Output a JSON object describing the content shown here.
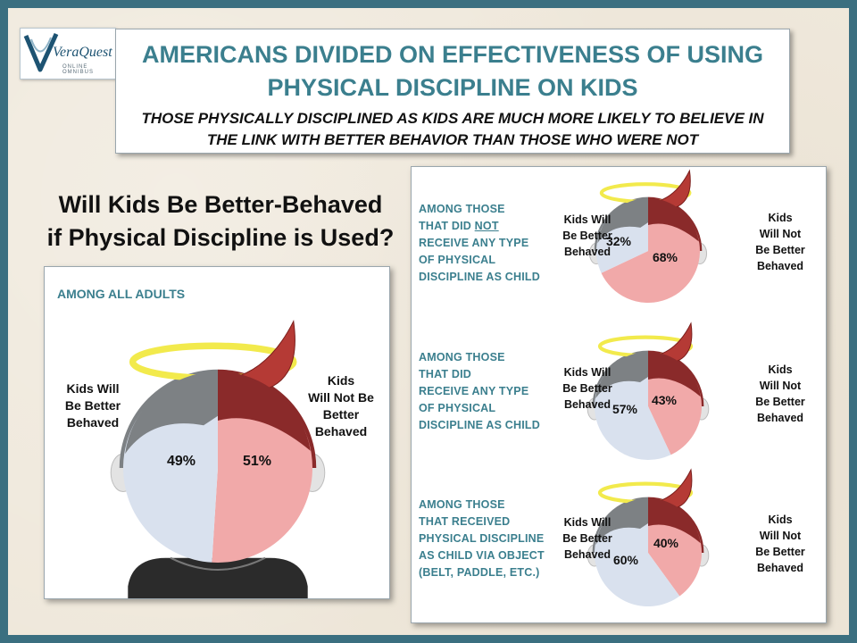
{
  "logo": {
    "name": "VeraQuest",
    "tagline": "ONLINE OMNIBUS"
  },
  "header": {
    "title_line1": "AMERICANS DIVIDED ON EFFECTIVENESS OF USING",
    "title_line2": "PHYSICAL DISCIPLINE ON KIDS",
    "subtitle_line1": "THOSE PHYSICALLY DISCIPLINED AS KIDS ARE MUCH MORE LIKELY TO BELIEVE IN",
    "subtitle_line2": "THE LINK WITH BETTER BEHAVIOR THAN THOSE WHO WERE NOT"
  },
  "question": {
    "line1": "Will Kids Be Better-Behaved",
    "line2": "if Physical Discipline is Used?"
  },
  "colors": {
    "better": "#d9e1ee",
    "not_better": "#f1a9a9",
    "hair": "#7d8184",
    "hair_devil": "#8a2a2a",
    "horn": "#b53a35",
    "halo": "#f2ea4c",
    "accent": "#3b7f8e"
  },
  "chart_data": [
    {
      "type": "pie",
      "title": "AMONG ALL ADULTS",
      "categories": [
        "Kids Will Be Better Behaved",
        "Kids Will Not Be Better Behaved"
      ],
      "values": [
        49,
        51
      ],
      "labels": [
        "49%",
        "51%"
      ],
      "label_better": [
        "Kids Will",
        "Be Better",
        "Behaved"
      ],
      "label_not": [
        "Kids",
        "Will Not Be",
        "Better",
        "Behaved"
      ]
    },
    {
      "type": "pie",
      "title_lines": [
        "AMONG THOSE",
        "THAT DID ",
        "NOT",
        "RECEIVE ANY TYPE",
        "OF PHYSICAL",
        "DISCIPLINE AS CHILD"
      ],
      "categories": [
        "Kids Will Be Better Behaved",
        "Kids Will Not Be Better Behaved"
      ],
      "values": [
        32,
        68
      ],
      "labels": [
        "32%",
        "68%"
      ],
      "label_better": [
        "Kids Will",
        "Be Better",
        "Behaved"
      ],
      "label_not": [
        "Kids",
        "Will Not",
        "Be  Better",
        "Behaved"
      ]
    },
    {
      "type": "pie",
      "title_lines": [
        "AMONG THOSE",
        "THAT DID",
        "RECEIVE ANY TYPE",
        "OF PHYSICAL",
        "DISCIPLINE AS CHILD"
      ],
      "categories": [
        "Kids Will Be Better Behaved",
        "Kids Will Not Be Better Behaved"
      ],
      "values": [
        57,
        43
      ],
      "labels": [
        "57%",
        "43%"
      ],
      "label_better": [
        "Kids Will",
        "Be Better",
        "Behaved"
      ],
      "label_not": [
        "Kids",
        "Will Not",
        "Be  Better",
        "Behaved"
      ]
    },
    {
      "type": "pie",
      "title_lines": [
        "AMONG THOSE",
        "THAT RECEIVED",
        "PHYSICAL DISCIPLINE",
        "AS CHILD VIA OBJECT",
        "(BELT, PADDLE, ETC.)"
      ],
      "categories": [
        "Kids Will Be Better Behaved",
        "Kids Will Not Be Better Behaved"
      ],
      "values": [
        60,
        40
      ],
      "labels": [
        "60%",
        "40%"
      ],
      "label_better": [
        "Kids Will",
        "Be Better",
        "Behaved"
      ],
      "label_not": [
        "Kids",
        "Will Not",
        "Be  Better",
        "Behaved"
      ]
    }
  ]
}
